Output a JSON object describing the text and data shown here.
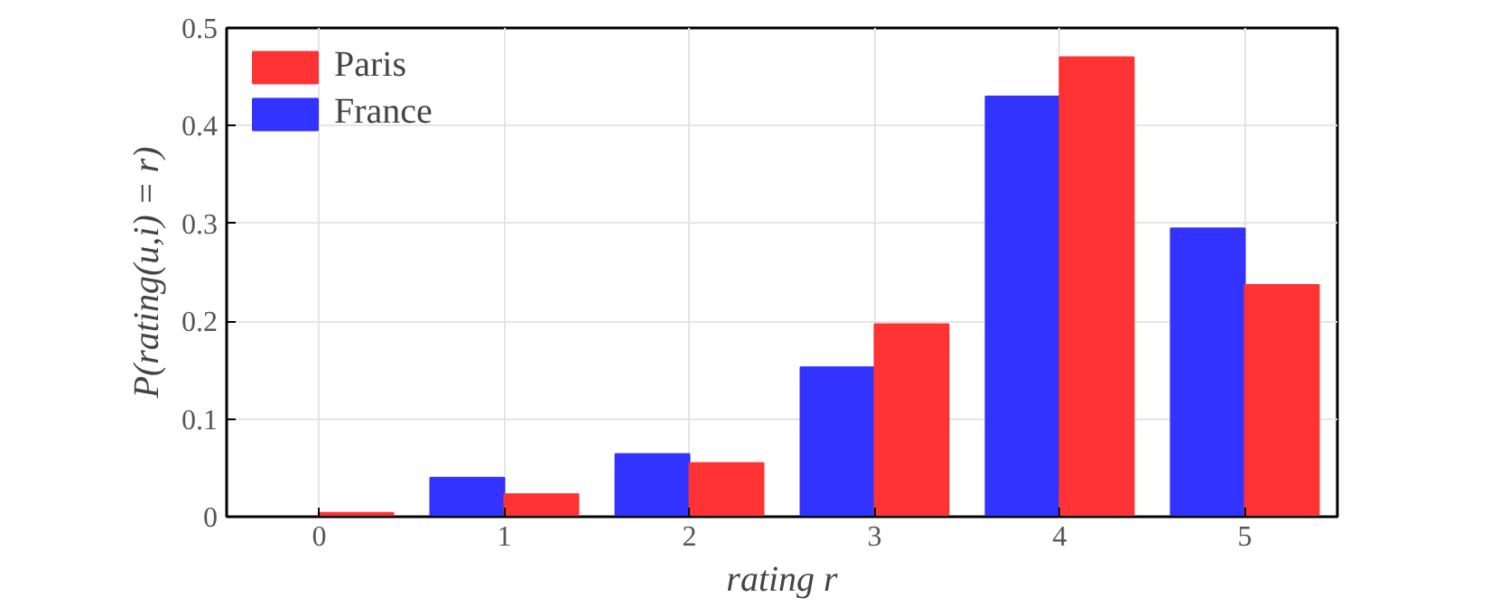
{
  "chart_data": {
    "type": "bar",
    "xlabel": "rating r",
    "ylabel": "P(rating(u,i) = r)",
    "categories": [
      "0",
      "1",
      "2",
      "3",
      "4",
      "5"
    ],
    "series": [
      {
        "name": "France",
        "color": "#3333ff",
        "values": [
          null,
          0.04,
          0.064,
          0.153,
          0.43,
          0.295
        ]
      },
      {
        "name": "Paris",
        "color": "#ff3333",
        "values": [
          0.004,
          0.023,
          0.055,
          0.197,
          0.47,
          0.237
        ]
      }
    ],
    "ylim": [
      0,
      0.5
    ],
    "yticks": [
      0,
      0.1,
      0.2,
      0.3,
      0.4,
      0.5
    ],
    "grid": true,
    "legend": "top left"
  }
}
